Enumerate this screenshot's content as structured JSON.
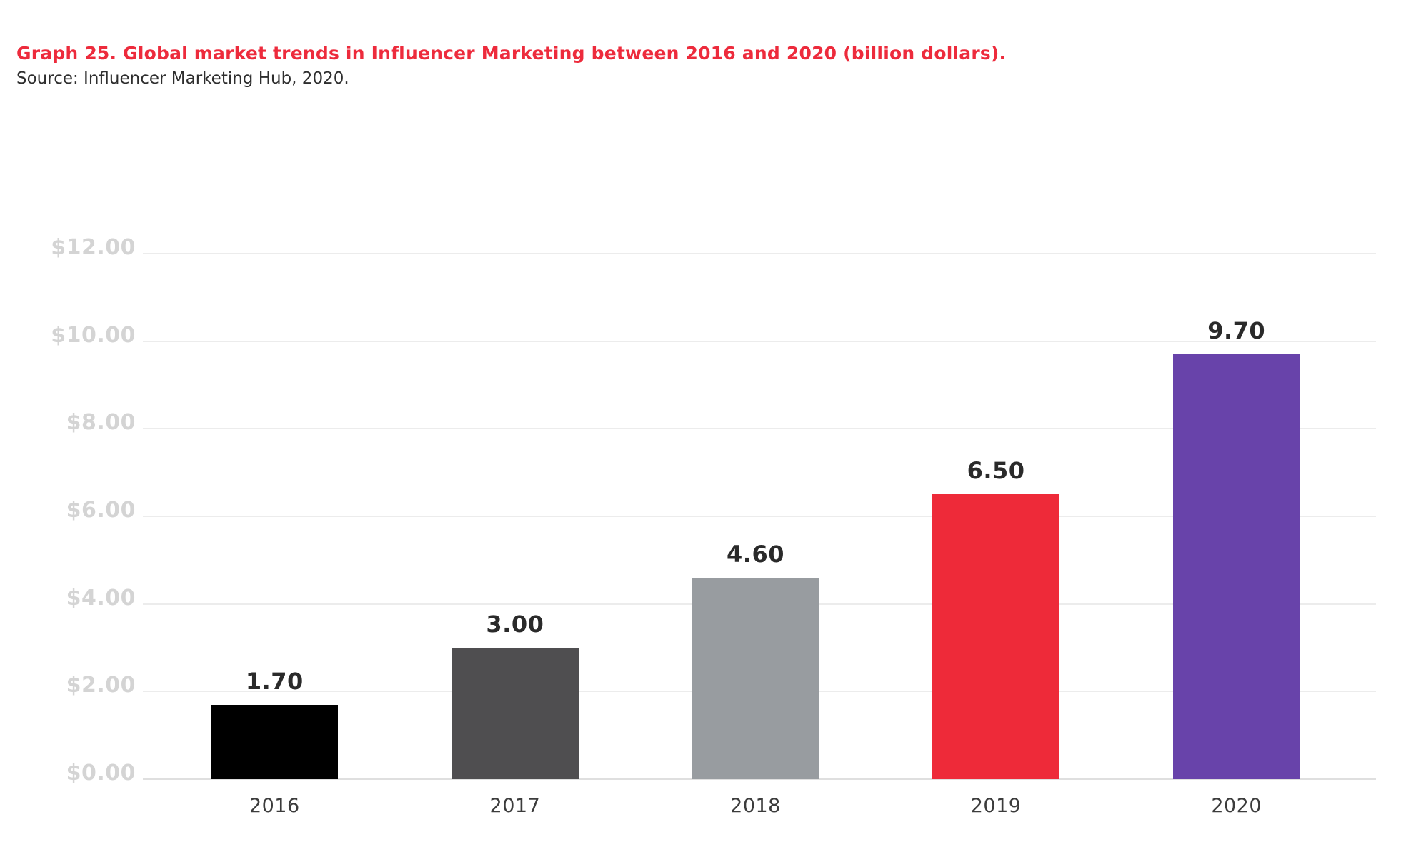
{
  "header": {
    "title": "Graph 25. Global market trends in Influencer Marketing between 2016 and 2020 (billion dollars).",
    "source": "Source: Influencer Marketing Hub, 2020."
  },
  "colors": {
    "title_red": "#ED2B3C",
    "source_text": "#2E2E2E",
    "value_label_text": "#2A2A2A",
    "y_axis_label_text": "#D4D4D4",
    "x_axis_label_text": "#3C3C3C",
    "gridline": "#ECECEC",
    "baseline": "#DFDFDF",
    "background": "#FFFFFF"
  },
  "chart_data": {
    "type": "bar",
    "title": "Graph 25. Global market trends in Influencer Marketing between 2016 and 2020 (billion dollars).",
    "subtitle": "Source: Influencer Marketing Hub, 2020.",
    "categories": [
      "2016",
      "2017",
      "2018",
      "2019",
      "2020"
    ],
    "values": [
      1.7,
      3.0,
      4.6,
      6.5,
      9.7
    ],
    "value_labels": [
      "1.70",
      "3.00",
      "4.60",
      "6.50",
      "9.70"
    ],
    "bar_colors": [
      "#000000",
      "#4F4E50",
      "#989CA0",
      "#EE2A39",
      "#6843AA"
    ],
    "xlabel": "",
    "ylabel": "",
    "ylim": [
      0,
      12
    ],
    "ytick_step": 2,
    "yticks": [
      {
        "label": "$12.00",
        "value": 12
      },
      {
        "label": "$10.00",
        "value": 10
      },
      {
        "label": "$8.00",
        "value": 8
      },
      {
        "label": "$6.00",
        "value": 6
      },
      {
        "label": "$4.00",
        "value": 4
      },
      {
        "label": "$2.00",
        "value": 2
      },
      {
        "label": "$0.00",
        "value": 0
      }
    ],
    "grid": "horizontal",
    "legend": "none"
  }
}
